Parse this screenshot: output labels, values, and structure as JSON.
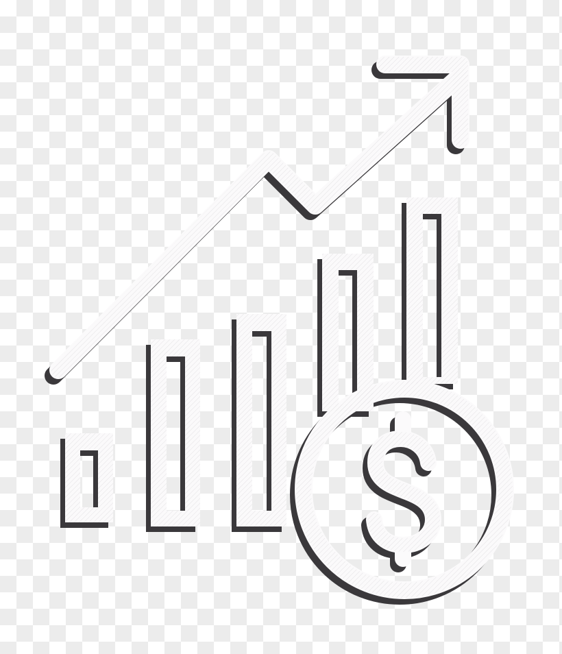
{
  "icon": {
    "name": "growth-chart-dollar",
    "bars": 5,
    "trend": "up",
    "currency_symbol": "$",
    "colors": {
      "fill": "#fbfafb",
      "shadow": "#3a383b",
      "background_check": "#ececec"
    }
  }
}
